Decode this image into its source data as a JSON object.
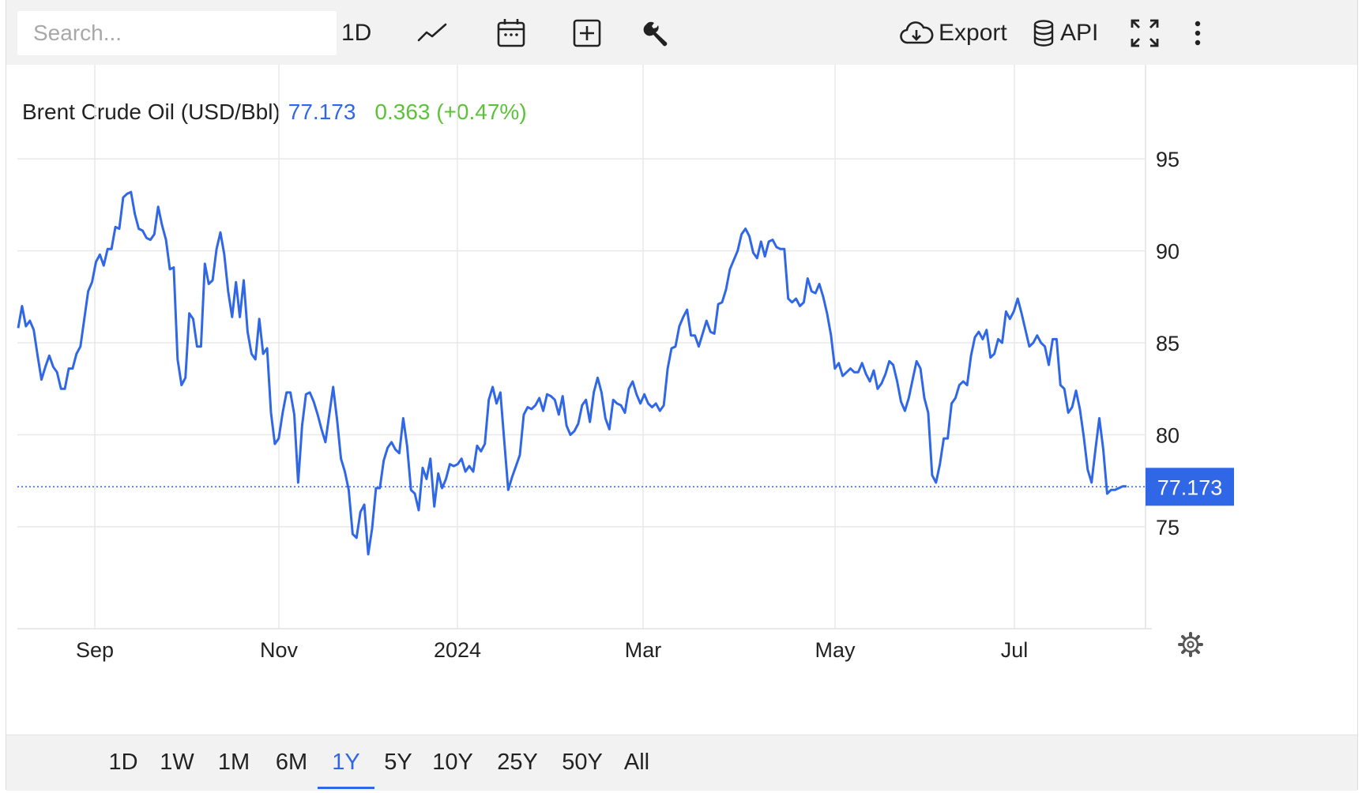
{
  "toolbar": {
    "search_placeholder": "Search...",
    "interval_label": "1D",
    "export_label": "Export",
    "api_label": "API",
    "icons": [
      "line-chart-icon",
      "calendar-icon",
      "plus-box-icon",
      "wrench-icon",
      "cloud-download-icon",
      "database-icon",
      "fullscreen-icon",
      "more-vertical-icon"
    ]
  },
  "header": {
    "instrument": "Brent Crude Oil (USD/Bbl)",
    "price": "77.173",
    "change": "0.363 (+0.47%)",
    "price_color": "#2f67e6",
    "change_color": "#5cc23a"
  },
  "ranges": {
    "items": [
      "1D",
      "1W",
      "1M",
      "6M",
      "1Y",
      "5Y",
      "10Y",
      "25Y",
      "50Y",
      "All"
    ],
    "selected": "1Y"
  },
  "chart_data": {
    "type": "line",
    "series": [
      {
        "color": "#2f67e6",
        "values": [
          85.8,
          87.0,
          85.9,
          86.2,
          85.7,
          84.3,
          83.0,
          83.7,
          84.3,
          83.7,
          83.4,
          82.5,
          82.5,
          83.6,
          83.6,
          84.4,
          84.8,
          86.3,
          87.8,
          88.3,
          89.4,
          89.8,
          89.2,
          90.1,
          90.1,
          91.3,
          91.2,
          92.9,
          93.1,
          93.2,
          92.0,
          91.2,
          91.1,
          90.7,
          90.6,
          90.9,
          92.4,
          91.4,
          90.6,
          89.0,
          89.1,
          84.1,
          82.7,
          83.1,
          86.6,
          86.3,
          84.8,
          84.8,
          89.3,
          88.2,
          88.4,
          90.1,
          91.0,
          89.8,
          87.8,
          86.4,
          88.3,
          86.4,
          88.4,
          85.6,
          84.4,
          84.1,
          86.3,
          84.4,
          84.7,
          81.2,
          79.5,
          79.8,
          81.2,
          82.3,
          82.3,
          81.1,
          77.4,
          80.5,
          82.2,
          82.3,
          81.8,
          81.1,
          80.3,
          79.6,
          81.1,
          82.6,
          80.8,
          78.7,
          78.0,
          77.0,
          74.6,
          74.4,
          75.8,
          76.2,
          73.5,
          74.9,
          77.1,
          77.1,
          78.6,
          79.3,
          79.6,
          79.2,
          79.0,
          80.9,
          79.4,
          77.0,
          76.8,
          75.9,
          78.2,
          77.6,
          78.7,
          76.1,
          77.9,
          77.1,
          77.6,
          78.4,
          78.3,
          78.4,
          78.7,
          78.0,
          78.3,
          78.0,
          79.4,
          79.1,
          79.5,
          81.9,
          82.6,
          81.7,
          82.3,
          79.6,
          77.0,
          77.7,
          78.3,
          78.9,
          81.1,
          81.5,
          81.4,
          81.6,
          82.0,
          81.3,
          82.2,
          82.1,
          81.9,
          81.1,
          82.1,
          80.5,
          80.0,
          80.2,
          80.6,
          81.6,
          81.9,
          80.7,
          82.3,
          83.1,
          82.3,
          80.9,
          80.3,
          81.9,
          81.7,
          81.6,
          81.2,
          82.5,
          82.9,
          82.2,
          81.7,
          82.2,
          81.7,
          81.5,
          81.7,
          81.3,
          81.6,
          83.6,
          84.7,
          84.8,
          85.9,
          86.4,
          86.8,
          85.4,
          85.4,
          84.8,
          85.5,
          86.2,
          85.6,
          85.5,
          87.1,
          87.2,
          87.9,
          89.0,
          89.5,
          90.0,
          90.9,
          91.2,
          90.8,
          89.9,
          89.6,
          90.5,
          89.7,
          90.5,
          90.6,
          90.2,
          90.1,
          90.1,
          87.4,
          87.2,
          87.4,
          87.0,
          87.2,
          88.5,
          87.8,
          87.7,
          88.2,
          87.5,
          86.6,
          85.4,
          83.6,
          83.9,
          83.2,
          83.4,
          83.6,
          83.4,
          83.4,
          83.9,
          83.3,
          82.9,
          83.5,
          82.5,
          82.8,
          83.3,
          84.0,
          83.8,
          82.9,
          81.8,
          81.3,
          82.0,
          83.0,
          84.0,
          83.6,
          82.0,
          81.2,
          77.8,
          77.4,
          78.4,
          79.8,
          79.8,
          81.7,
          82.0,
          82.7,
          82.9,
          82.7,
          84.3,
          85.3,
          85.6,
          85.2,
          85.7,
          84.2,
          84.4,
          85.2,
          85.0,
          86.7,
          86.3,
          86.7,
          87.4,
          86.6,
          85.7,
          84.8,
          85.0,
          85.4,
          85.0,
          84.8,
          83.8,
          85.2,
          85.2,
          82.7,
          82.5,
          81.2,
          81.5,
          82.4,
          81.4,
          79.9,
          78.1,
          77.4,
          79.2,
          80.9,
          79.2,
          76.8,
          77.0,
          77.0,
          77.1,
          77.2,
          77.2
        ]
      }
    ],
    "x_tick_labels": [
      "Sep",
      "Nov",
      "2024",
      "Mar",
      "May",
      "Jul"
    ],
    "y_tick_labels": [
      "95",
      "90",
      "85",
      "80",
      "75"
    ],
    "ylim": [
      69.5,
      99
    ],
    "last_value_label": "77.173",
    "last_value": 77.173,
    "grid": true,
    "line_color": "#2f67e6"
  }
}
